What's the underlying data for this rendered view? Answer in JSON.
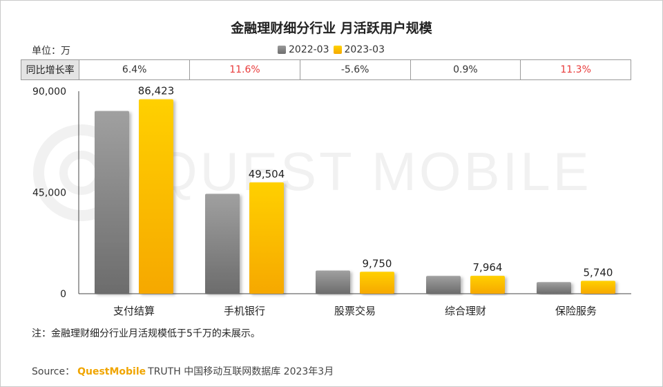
{
  "title": "金融理财细分行业 月活跃用户规模",
  "unit_label": "单位：万",
  "legend": [
    {
      "label": "2022-03",
      "color": "#8a8a8a"
    },
    {
      "label": "2023-03",
      "color": "#ffc000"
    }
  ],
  "growth_table": {
    "header": "同比增长率",
    "values": [
      "6.4%",
      "11.6%",
      "-5.6%",
      "0.9%",
      "11.3%"
    ],
    "colors": [
      "#333333",
      "#e83a3a",
      "#333333",
      "#333333",
      "#e83a3a"
    ]
  },
  "watermark": "QUEST MOBILE",
  "note": "注：金融理财细分行业月活规模低于5千万的未展示。",
  "source": {
    "prefix": "Source：",
    "brand": "QuestMobile",
    "rest": "TRUTH 中国移动互联网数据库 2023年3月"
  },
  "chart_data": {
    "type": "bar",
    "categories": [
      "支付结算",
      "手机银行",
      "股票交易",
      "综合理财",
      "保险服务"
    ],
    "series": [
      {
        "name": "2022-03",
        "values": [
          81200,
          44400,
          10300,
          7900,
          5160
        ],
        "color": "#8a8a8a",
        "show_labels": false
      },
      {
        "name": "2023-03",
        "values": [
          86423,
          49504,
          9750,
          7964,
          5740
        ],
        "color": "#ffc000",
        "show_labels": true
      }
    ],
    "value_labels": [
      "86,423",
      "49,504",
      "9,750",
      "7,964",
      "5,740"
    ],
    "yticks": [
      0,
      45000,
      90000
    ],
    "ytick_labels": [
      "0",
      "45,000",
      "90,000"
    ],
    "ylim": [
      0,
      90000
    ]
  }
}
